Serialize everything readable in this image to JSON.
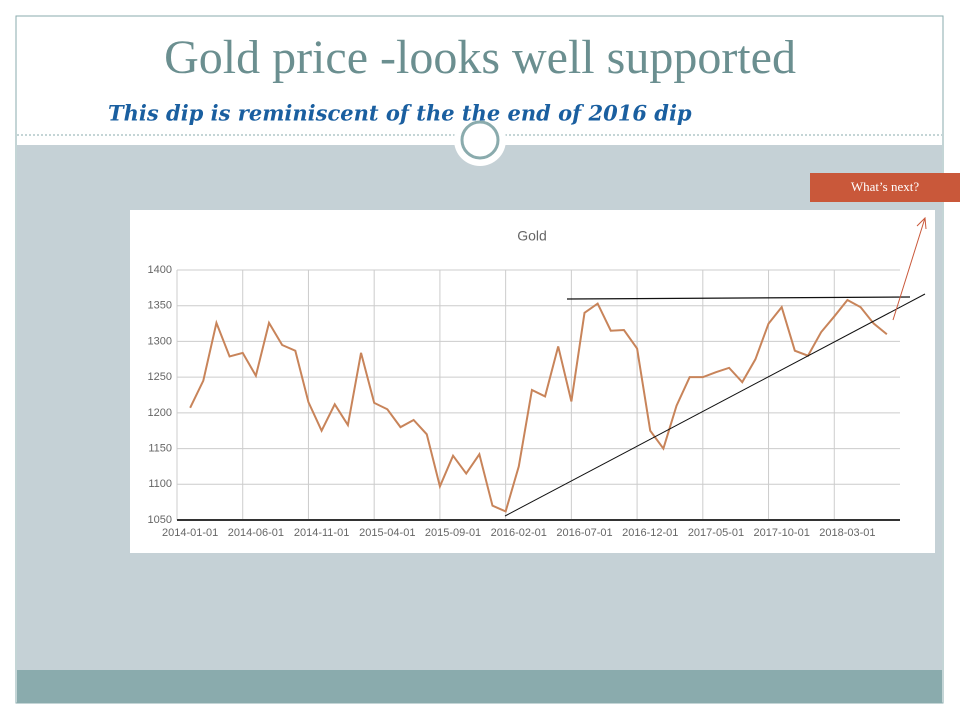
{
  "slide": {
    "title": "Gold price -looks well supported",
    "subtitle": "This dip is reminiscent of the the end of 2016 dip",
    "callout": "What’s next?"
  },
  "chart_data": {
    "type": "line",
    "title": "Gold",
    "categories": [
      "2014-01-01",
      null,
      null,
      null,
      null,
      "2014-06-01",
      null,
      null,
      null,
      null,
      "2014-11-01",
      null,
      null,
      null,
      null,
      "2015-04-01",
      null,
      null,
      null,
      null,
      "2015-09-01",
      null,
      null,
      null,
      null,
      "2016-02-01",
      null,
      null,
      null,
      null,
      "2016-07-01",
      null,
      null,
      null,
      null,
      "2016-12-01",
      null,
      null,
      null,
      null,
      "2017-05-01",
      null,
      null,
      null,
      null,
      "2017-10-01",
      null,
      null,
      null,
      null,
      "2018-03-01",
      null,
      null,
      null
    ],
    "series": [
      {
        "name": "Gold",
        "color": "#c8845a",
        "values": [
          1207,
          1245,
          1326,
          1279,
          1284,
          1252,
          1326,
          1295,
          1287,
          1215,
          1175,
          1212,
          1183,
          1284,
          1214,
          1205,
          1180,
          1190,
          1170,
          1097,
          1140,
          1115,
          1142,
          1070,
          1062,
          1125,
          1232,
          1223,
          1293,
          1216,
          1340,
          1353,
          1315,
          1316,
          1290,
          1175,
          1150,
          1210,
          1250,
          1250,
          1257,
          1263,
          1243,
          1275,
          1325,
          1348,
          1287,
          1280,
          1313,
          1335,
          1358,
          1348,
          1325,
          1310
        ]
      }
    ],
    "ylim": [
      1050,
      1400
    ],
    "yticks": [
      1050,
      1100,
      1150,
      1200,
      1250,
      1300,
      1350,
      1400
    ],
    "grid": true
  }
}
